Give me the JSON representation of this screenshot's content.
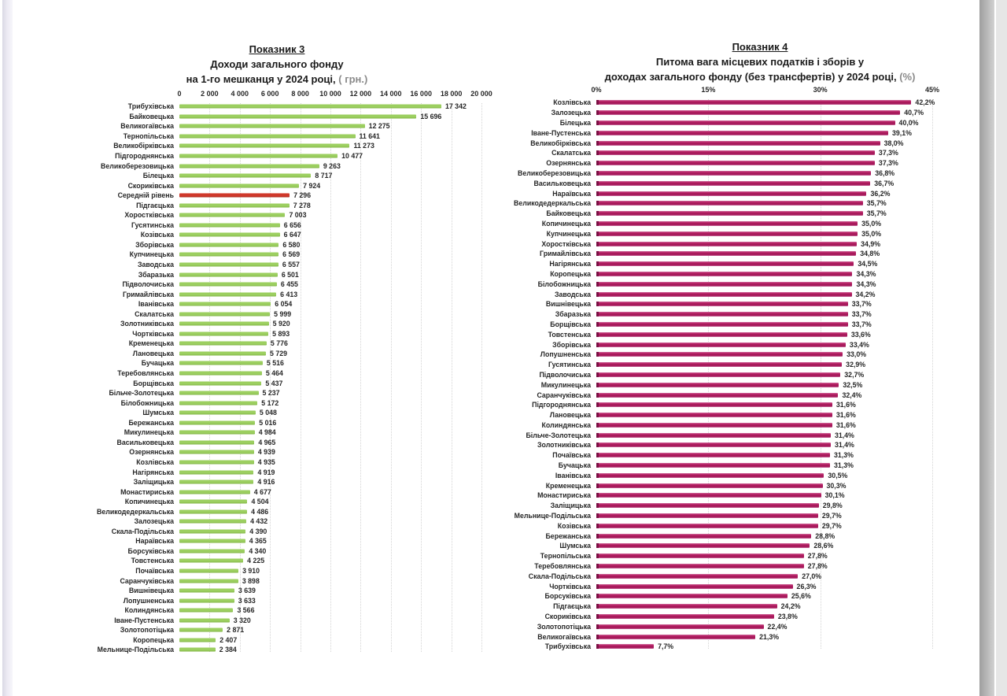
{
  "page": {
    "background": "#ffffff"
  },
  "chart_data": [
    {
      "type": "bar",
      "orientation": "horizontal",
      "line1": "Показник 3",
      "line2": "Доходи загального фонду",
      "line3": "на 1-го мешканця у 2024 році, ",
      "unit": "( грн.)",
      "xlim": [
        0,
        20000
      ],
      "grid": "dotted-vertical",
      "bar_color": "#9ccf60",
      "highlight": {
        "index": 9,
        "color": "#d0382a",
        "meaning": "середній рівень"
      },
      "x_ticks": [
        {
          "value": 0,
          "label": "0"
        },
        {
          "value": 2000,
          "label": "2 000"
        },
        {
          "value": 4000,
          "label": "4 000"
        },
        {
          "value": 6000,
          "label": "6 000"
        },
        {
          "value": 8000,
          "label": "8 000"
        },
        {
          "value": 10000,
          "label": "10 000"
        },
        {
          "value": 12000,
          "label": "12 000"
        },
        {
          "value": 14000,
          "label": "14 000"
        },
        {
          "value": 16000,
          "label": "16 000"
        },
        {
          "value": 18000,
          "label": "18 000"
        },
        {
          "value": 20000,
          "label": "20 000"
        }
      ],
      "rows": [
        {
          "category": "Трибухівська",
          "value": 17342,
          "label": "17 342"
        },
        {
          "category": "Байковецька",
          "value": 15696,
          "label": "15 696"
        },
        {
          "category": "Великогаївська",
          "value": 12275,
          "label": "12 275"
        },
        {
          "category": "Тернопільська",
          "value": 11641,
          "label": "11 641"
        },
        {
          "category": "Великобірківська",
          "value": 11273,
          "label": "11 273"
        },
        {
          "category": "Підгороднянська",
          "value": 10477,
          "label": "10 477"
        },
        {
          "category": "Великоберезовицька",
          "value": 9263,
          "label": "9 263"
        },
        {
          "category": "Білецька",
          "value": 8717,
          "label": "8 717"
        },
        {
          "category": "Скориківська",
          "value": 7924,
          "label": "7 924"
        },
        {
          "category": "Середній рівень",
          "value": 7296,
          "label": "7 296"
        },
        {
          "category": "Підгаєцька",
          "value": 7278,
          "label": "7 278"
        },
        {
          "category": "Хоростківська",
          "value": 7003,
          "label": "7 003"
        },
        {
          "category": "Гусятинська",
          "value": 6656,
          "label": "6 656"
        },
        {
          "category": "Козівська",
          "value": 6647,
          "label": "6 647"
        },
        {
          "category": "Зборівська",
          "value": 6580,
          "label": "6 580"
        },
        {
          "category": "Купчинецька",
          "value": 6569,
          "label": "6 569"
        },
        {
          "category": "Заводська",
          "value": 6557,
          "label": "6 557"
        },
        {
          "category": "Збаразька",
          "value": 6501,
          "label": "6 501"
        },
        {
          "category": "Підволочиська",
          "value": 6455,
          "label": "6 455"
        },
        {
          "category": "Гримайлівська",
          "value": 6413,
          "label": "6 413"
        },
        {
          "category": "Іванівська",
          "value": 6054,
          "label": "6 054"
        },
        {
          "category": "Скалатська",
          "value": 5999,
          "label": "5 999"
        },
        {
          "category": "Золотниківська",
          "value": 5920,
          "label": "5 920"
        },
        {
          "category": "Чортківська",
          "value": 5893,
          "label": "5 893"
        },
        {
          "category": "Кременецька",
          "value": 5776,
          "label": "5 776"
        },
        {
          "category": "Лановецька",
          "value": 5729,
          "label": "5 729"
        },
        {
          "category": "Бучацька",
          "value": 5516,
          "label": "5 516"
        },
        {
          "category": "Теребовлянська",
          "value": 5464,
          "label": "5 464"
        },
        {
          "category": "Борщівська",
          "value": 5437,
          "label": "5 437"
        },
        {
          "category": "Більче-Золотецька",
          "value": 5237,
          "label": "5 237"
        },
        {
          "category": "Білобожницька",
          "value": 5172,
          "label": "5 172"
        },
        {
          "category": "Шумська",
          "value": 5048,
          "label": "5 048"
        },
        {
          "category": "Бережанська",
          "value": 5016,
          "label": "5 016"
        },
        {
          "category": "Микулинецька",
          "value": 4984,
          "label": "4 984"
        },
        {
          "category": "Васильковецька",
          "value": 4965,
          "label": "4 965"
        },
        {
          "category": "Озернянська",
          "value": 4939,
          "label": "4 939"
        },
        {
          "category": "Козлівська",
          "value": 4935,
          "label": "4 935"
        },
        {
          "category": "Нагірянська",
          "value": 4919,
          "label": "4 919"
        },
        {
          "category": "Заліщицька",
          "value": 4916,
          "label": "4 916"
        },
        {
          "category": "Монастириська",
          "value": 4677,
          "label": "4 677"
        },
        {
          "category": "Копичинецька",
          "value": 4504,
          "label": "4 504"
        },
        {
          "category": "Великодедеркальська",
          "value": 4486,
          "label": "4 486"
        },
        {
          "category": "Залозецька",
          "value": 4432,
          "label": "4 432"
        },
        {
          "category": "Скала-Подільська",
          "value": 4390,
          "label": "4 390"
        },
        {
          "category": "Нараївська",
          "value": 4365,
          "label": "4 365"
        },
        {
          "category": "Борсуківська",
          "value": 4340,
          "label": "4 340"
        },
        {
          "category": "Товстенська",
          "value": 4225,
          "label": "4 225"
        },
        {
          "category": "Почаївська",
          "value": 3910,
          "label": "3 910"
        },
        {
          "category": "Саранчуківська",
          "value": 3898,
          "label": "3 898"
        },
        {
          "category": "Вишнівецька",
          "value": 3639,
          "label": "3 639"
        },
        {
          "category": "Лопушненська",
          "value": 3633,
          "label": "3 633"
        },
        {
          "category": "Колиндянська",
          "value": 3566,
          "label": "3 566"
        },
        {
          "category": "Іване-Пустенська",
          "value": 3320,
          "label": "3 320"
        },
        {
          "category": "Золотопотіцька",
          "value": 2871,
          "label": "2 871"
        },
        {
          "category": "Коропецька",
          "value": 2407,
          "label": "2 407"
        },
        {
          "category": "Мельнице-Подільська",
          "value": 2384,
          "label": "2 384"
        }
      ]
    },
    {
      "type": "bar",
      "orientation": "horizontal",
      "line1": "Показник 4",
      "line2": "Питома вага місцевих податків і зборів у",
      "line3": "доходах загального фонду (без трансфертів) у 2024 році, ",
      "unit": "(%)",
      "xlim": [
        0,
        45
      ],
      "grid": "dotted-vertical",
      "bar_color": "#b51f63",
      "x_ticks": [
        {
          "value": 0,
          "label": "0%"
        },
        {
          "value": 15,
          "label": "15%"
        },
        {
          "value": 30,
          "label": "30%"
        },
        {
          "value": 45,
          "label": "45%"
        }
      ],
      "rows": [
        {
          "category": "Козлівська",
          "value": 42.2,
          "label": "42,2%"
        },
        {
          "category": "Залозецька",
          "value": 40.7,
          "label": "40,7%"
        },
        {
          "category": "Білецька",
          "value": 40.0,
          "label": "40,0%"
        },
        {
          "category": "Іване-Пустенська",
          "value": 39.1,
          "label": "39,1%"
        },
        {
          "category": "Великобірківська",
          "value": 38.0,
          "label": "38,0%"
        },
        {
          "category": "Скалатська",
          "value": 37.3,
          "label": "37,3%"
        },
        {
          "category": "Озернянська",
          "value": 37.3,
          "label": "37,3%"
        },
        {
          "category": "Великоберезовицька",
          "value": 36.8,
          "label": "36,8%"
        },
        {
          "category": "Васильковецька",
          "value": 36.7,
          "label": "36,7%"
        },
        {
          "category": "Нараївська",
          "value": 36.2,
          "label": "36,2%"
        },
        {
          "category": "Великодедеркальська",
          "value": 35.7,
          "label": "35,7%"
        },
        {
          "category": "Байковецька",
          "value": 35.7,
          "label": "35,7%"
        },
        {
          "category": "Копичинецька",
          "value": 35.0,
          "label": "35,0%"
        },
        {
          "category": "Купчинецька",
          "value": 35.0,
          "label": "35,0%"
        },
        {
          "category": "Хоростківська",
          "value": 34.9,
          "label": "34,9%"
        },
        {
          "category": "Гримайлівська",
          "value": 34.8,
          "label": "34,8%"
        },
        {
          "category": "Нагірянська",
          "value": 34.5,
          "label": "34,5%"
        },
        {
          "category": "Коропецька",
          "value": 34.3,
          "label": "34,3%"
        },
        {
          "category": "Білобожницька",
          "value": 34.3,
          "label": "34,3%"
        },
        {
          "category": "Заводська",
          "value": 34.2,
          "label": "34,2%"
        },
        {
          "category": "Вишнівецька",
          "value": 33.7,
          "label": "33,7%"
        },
        {
          "category": "Збаразька",
          "value": 33.7,
          "label": "33,7%"
        },
        {
          "category": "Борщівська",
          "value": 33.7,
          "label": "33,7%"
        },
        {
          "category": "Товстенська",
          "value": 33.6,
          "label": "33,6%"
        },
        {
          "category": "Зборівська",
          "value": 33.4,
          "label": "33,4%"
        },
        {
          "category": "Лопушненська",
          "value": 33.0,
          "label": "33,0%"
        },
        {
          "category": "Гусятинська",
          "value": 32.9,
          "label": "32,9%"
        },
        {
          "category": "Підволочиська",
          "value": 32.7,
          "label": "32,7%"
        },
        {
          "category": "Микулинецька",
          "value": 32.5,
          "label": "32,5%"
        },
        {
          "category": "Саранчуківська",
          "value": 32.4,
          "label": "32,4%"
        },
        {
          "category": "Підгороднянська",
          "value": 31.6,
          "label": "31,6%"
        },
        {
          "category": "Лановецька",
          "value": 31.6,
          "label": "31,6%"
        },
        {
          "category": "Колиндянська",
          "value": 31.6,
          "label": "31,6%"
        },
        {
          "category": "Більче-Золотецька",
          "value": 31.4,
          "label": "31,4%"
        },
        {
          "category": "Золотниківська",
          "value": 31.4,
          "label": "31,4%"
        },
        {
          "category": "Почаївська",
          "value": 31.3,
          "label": "31,3%"
        },
        {
          "category": "Бучацька",
          "value": 31.3,
          "label": "31,3%"
        },
        {
          "category": "Іванівська",
          "value": 30.5,
          "label": "30,5%"
        },
        {
          "category": "Кременецька",
          "value": 30.3,
          "label": "30,3%"
        },
        {
          "category": "Монастириська",
          "value": 30.1,
          "label": "30,1%"
        },
        {
          "category": "Заліщицька",
          "value": 29.8,
          "label": "29,8%"
        },
        {
          "category": "Мельнице-Подільська",
          "value": 29.7,
          "label": "29,7%"
        },
        {
          "category": "Козівська",
          "value": 29.7,
          "label": "29,7%"
        },
        {
          "category": "Бережанська",
          "value": 28.8,
          "label": "28,8%"
        },
        {
          "category": "Шумська",
          "value": 28.6,
          "label": "28,6%"
        },
        {
          "category": "Тернопільська",
          "value": 27.8,
          "label": "27,8%"
        },
        {
          "category": "Теребовлянська",
          "value": 27.8,
          "label": "27,8%"
        },
        {
          "category": "Скала-Подільська",
          "value": 27.0,
          "label": "27,0%"
        },
        {
          "category": "Чортківська",
          "value": 26.3,
          "label": "26,3%"
        },
        {
          "category": "Борсуківська",
          "value": 25.6,
          "label": "25,6%"
        },
        {
          "category": "Підгаєцька",
          "value": 24.2,
          "label": "24,2%"
        },
        {
          "category": "Скориківська",
          "value": 23.8,
          "label": "23,8%"
        },
        {
          "category": "Золотопотіцька",
          "value": 22.4,
          "label": "22,4%"
        },
        {
          "category": "Великогаївська",
          "value": 21.3,
          "label": "21,3%"
        },
        {
          "category": "Трибухівська",
          "value": 7.7,
          "label": "7,7%"
        }
      ]
    }
  ]
}
